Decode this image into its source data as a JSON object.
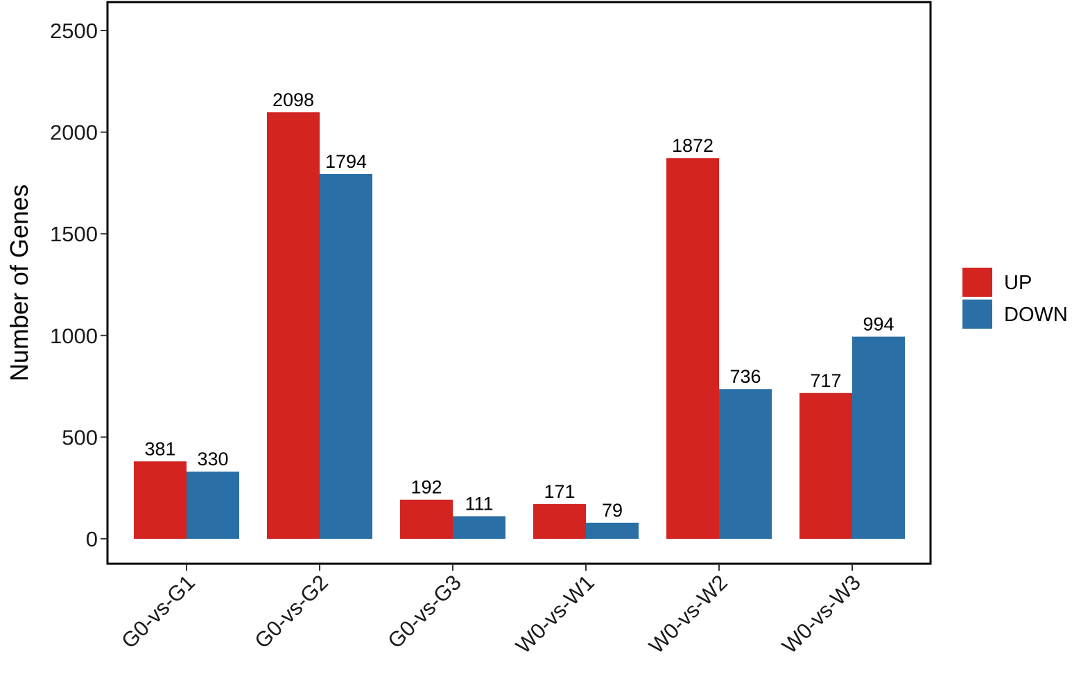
{
  "chart_data": {
    "type": "bar",
    "title": "",
    "xlabel": "",
    "ylabel": "Number of Genes",
    "ylim": [
      0,
      2500
    ],
    "yticks": [
      0,
      500,
      1000,
      1500,
      2000,
      2500
    ],
    "categories": [
      "G0-vs-G1",
      "G0-vs-G2",
      "G0-vs-G3",
      "W0-vs-W1",
      "W0-vs-W2",
      "W0-vs-W3"
    ],
    "series": [
      {
        "name": "UP",
        "color": "#d42421",
        "values": [
          381,
          2098,
          192,
          171,
          1872,
          717
        ]
      },
      {
        "name": "DOWN",
        "color": "#2a6fa6",
        "values": [
          330,
          1794,
          111,
          79,
          736,
          994
        ]
      }
    ],
    "grid": false,
    "legend": "right"
  }
}
